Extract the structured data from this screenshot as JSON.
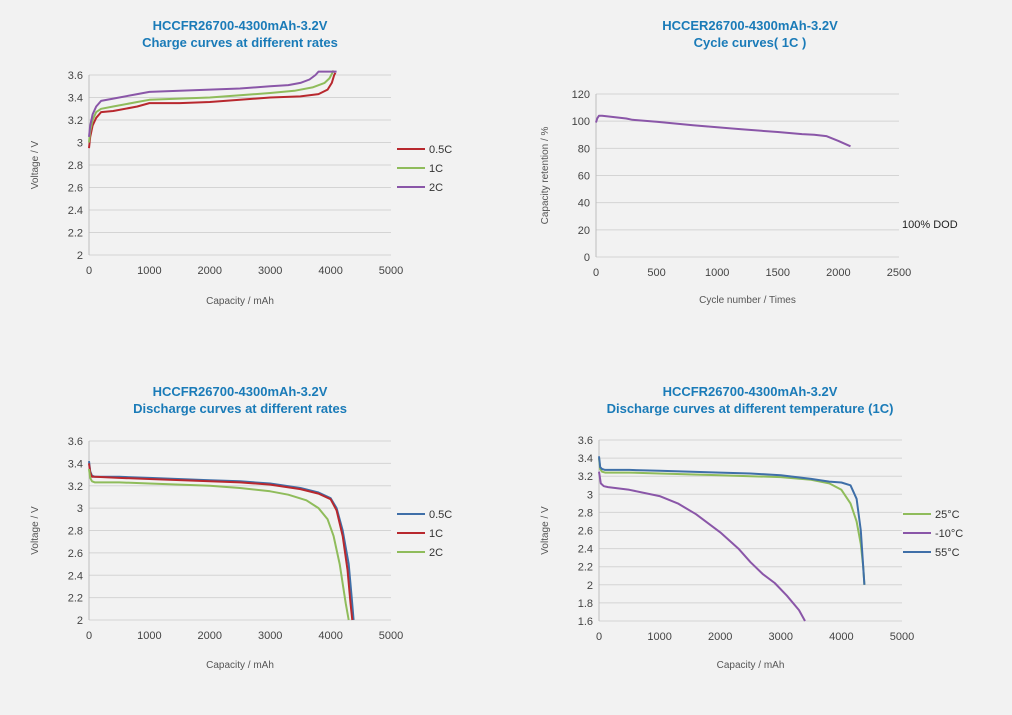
{
  "chart_data": [
    {
      "type": "line",
      "title": "HCCFR26700-4300mAh-3.2V",
      "subtitle": "Charge curves at different rates",
      "xlabel": "Capacity / mAh",
      "ylabel": "Voltage / V",
      "xlim": [
        0,
        5000
      ],
      "ylim": [
        2,
        3.6
      ],
      "xticks": [
        "0",
        "1000",
        "2000",
        "3000",
        "4000",
        "5000"
      ],
      "yticks": [
        "2",
        "2.2",
        "2.4",
        "2.6",
        "2.8",
        "3",
        "3.2",
        "3.4",
        "3.6"
      ],
      "grid": "horizontal",
      "legend": "right",
      "series": [
        {
          "name": "0.5C",
          "color": "#b8282e",
          "x": [
            0,
            20,
            60,
            120,
            200,
            400,
            800,
            1000,
            1500,
            2000,
            2500,
            3000,
            3500,
            3800,
            3950,
            4020,
            4060,
            4080
          ],
          "y": [
            2.95,
            3.05,
            3.15,
            3.22,
            3.27,
            3.28,
            3.32,
            3.35,
            3.35,
            3.36,
            3.38,
            3.4,
            3.41,
            3.43,
            3.47,
            3.53,
            3.6,
            3.62
          ]
        },
        {
          "name": "1C",
          "color": "#8fbc5b",
          "x": [
            0,
            20,
            60,
            120,
            200,
            400,
            800,
            1000,
            1500,
            2000,
            2500,
            3000,
            3400,
            3700,
            3900,
            3980,
            4030,
            4050
          ],
          "y": [
            3.0,
            3.1,
            3.2,
            3.27,
            3.3,
            3.32,
            3.36,
            3.38,
            3.39,
            3.4,
            3.42,
            3.44,
            3.46,
            3.49,
            3.53,
            3.57,
            3.62,
            3.64
          ]
        },
        {
          "name": "2C",
          "color": "#8a56a8",
          "x": [
            0,
            20,
            60,
            120,
            200,
            400,
            800,
            1000,
            1500,
            2000,
            2500,
            3000,
            3300,
            3500,
            3650,
            3750,
            3800,
            4100
          ],
          "y": [
            3.05,
            3.15,
            3.25,
            3.32,
            3.37,
            3.39,
            3.43,
            3.45,
            3.46,
            3.47,
            3.48,
            3.5,
            3.51,
            3.53,
            3.56,
            3.6,
            3.63,
            3.63
          ]
        }
      ]
    },
    {
      "type": "line",
      "title": "HCCER26700-4300mAh-3.2V",
      "subtitle": "Cycle curves( 1C )",
      "xlabel": "Cycle number / Times",
      "ylabel": "Capacity retention / %",
      "xlim": [
        0,
        2500
      ],
      "ylim": [
        0,
        120
      ],
      "xticks": [
        "0",
        "500",
        "1000",
        "1500",
        "2000",
        "2500"
      ],
      "yticks": [
        "0",
        "20",
        "40",
        "60",
        "80",
        "100",
        "120"
      ],
      "grid": "horizontal",
      "annotation": "100% DOD",
      "series": [
        {
          "name": "",
          "color": "#8a56a8",
          "x": [
            0,
            10,
            25,
            50,
            150,
            250,
            300,
            500,
            800,
            1000,
            1200,
            1500,
            1700,
            1800,
            1900,
            2000,
            2100
          ],
          "y": [
            99,
            102,
            104,
            104,
            103,
            102,
            101,
            99.5,
            97,
            95.5,
            94,
            92,
            90.5,
            90,
            89,
            85.5,
            81.5
          ]
        }
      ]
    },
    {
      "type": "line",
      "title": "HCCFR26700-4300mAh-3.2V",
      "subtitle": "Discharge curves at different rates",
      "xlabel": "Capacity / mAh",
      "ylabel": "Voltage / V",
      "xlim": [
        0,
        5000
      ],
      "ylim": [
        2,
        3.6
      ],
      "xticks": [
        "0",
        "1000",
        "2000",
        "3000",
        "4000",
        "5000"
      ],
      "yticks": [
        "2",
        "2.2",
        "2.4",
        "2.6",
        "2.8",
        "3",
        "3.2",
        "3.4",
        "3.6"
      ],
      "grid": "horizontal",
      "legend": "right",
      "series": [
        {
          "name": "0.5C",
          "color": "#3f6fa8",
          "x": [
            0,
            20,
            50,
            100,
            500,
            1000,
            2000,
            2500,
            3000,
            3500,
            3800,
            4000,
            4100,
            4200,
            4300,
            4350,
            4380
          ],
          "y": [
            3.42,
            3.33,
            3.29,
            3.28,
            3.28,
            3.27,
            3.25,
            3.24,
            3.22,
            3.18,
            3.14,
            3.09,
            3.0,
            2.8,
            2.5,
            2.2,
            2.0
          ]
        },
        {
          "name": "1C",
          "color": "#b8282e",
          "x": [
            0,
            20,
            50,
            100,
            500,
            1000,
            2000,
            2500,
            3000,
            3500,
            3800,
            4000,
            4100,
            4200,
            4280,
            4330,
            4360
          ],
          "y": [
            3.4,
            3.32,
            3.28,
            3.28,
            3.27,
            3.26,
            3.24,
            3.23,
            3.21,
            3.17,
            3.13,
            3.08,
            2.98,
            2.75,
            2.45,
            2.15,
            2.0
          ]
        },
        {
          "name": "2C",
          "color": "#8fbc5b",
          "x": [
            0,
            20,
            50,
            100,
            500,
            1000,
            2000,
            2500,
            3000,
            3300,
            3600,
            3800,
            3950,
            4050,
            4150,
            4250,
            4300
          ],
          "y": [
            3.35,
            3.27,
            3.24,
            3.23,
            3.23,
            3.22,
            3.2,
            3.18,
            3.15,
            3.12,
            3.07,
            3.0,
            2.9,
            2.75,
            2.5,
            2.15,
            2.0
          ]
        }
      ]
    },
    {
      "type": "line",
      "title": "HCCFR26700-4300mAh-3.2V",
      "subtitle": "Discharge curves at different temperature (1C)",
      "xlabel": "Capacity / mAh",
      "ylabel": "Voltage / V",
      "xlim": [
        0,
        5000
      ],
      "ylim": [
        1.6,
        3.6
      ],
      "xticks": [
        "0",
        "1000",
        "2000",
        "3000",
        "4000",
        "5000"
      ],
      "yticks": [
        "1.6",
        "1.8",
        "2",
        "2.2",
        "2.4",
        "2.6",
        "2.8",
        "3",
        "3.2",
        "3.4",
        "3.6"
      ],
      "grid": "horizontal",
      "legend": "right",
      "series": [
        {
          "name": "25°C",
          "color": "#8fbc5b",
          "x": [
            0,
            20,
            50,
            100,
            500,
            1000,
            2000,
            2500,
            3000,
            3500,
            3800,
            4000,
            4150,
            4250,
            4320,
            4360,
            4380
          ],
          "y": [
            3.4,
            3.28,
            3.25,
            3.24,
            3.24,
            3.23,
            3.21,
            3.2,
            3.19,
            3.16,
            3.12,
            3.05,
            2.9,
            2.7,
            2.45,
            2.2,
            2.0
          ]
        },
        {
          "name": "-10°C",
          "color": "#8a56a8",
          "x": [
            0,
            30,
            80,
            150,
            500,
            1000,
            1300,
            1600,
            2000,
            2300,
            2500,
            2700,
            2900,
            3100,
            3300,
            3400
          ],
          "y": [
            3.25,
            3.12,
            3.09,
            3.08,
            3.05,
            2.98,
            2.9,
            2.78,
            2.58,
            2.4,
            2.25,
            2.12,
            2.02,
            1.88,
            1.72,
            1.6
          ]
        },
        {
          "name": "55°C",
          "color": "#3f6fa8",
          "x": [
            0,
            20,
            50,
            100,
            500,
            1000,
            2000,
            2500,
            3000,
            3500,
            3800,
            4000,
            4150,
            4250,
            4320,
            4360,
            4380
          ],
          "y": [
            3.42,
            3.3,
            3.28,
            3.27,
            3.27,
            3.26,
            3.24,
            3.23,
            3.21,
            3.17,
            3.14,
            3.13,
            3.1,
            2.95,
            2.6,
            2.2,
            2.0
          ]
        }
      ]
    }
  ]
}
